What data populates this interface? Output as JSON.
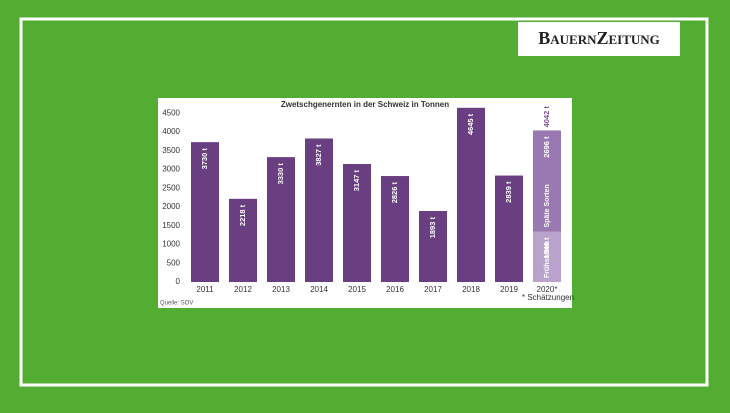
{
  "brand": "BauernZeitung",
  "chart_data": {
    "type": "bar",
    "title": "Zwetschgenernten in der Schweiz in Tonnen",
    "categories": [
      "2011",
      "2012",
      "2013",
      "2014",
      "2015",
      "2016",
      "2017",
      "2018",
      "2019",
      "2020*"
    ],
    "series": [
      {
        "color": "#6a3f82",
        "values": [
          3730,
          2218,
          3330,
          3827,
          3147,
          2826,
          1893,
          4645,
          2839,
          null
        ],
        "value_labels": [
          "3730 t",
          "2218 t",
          "3330 t",
          "3827 t",
          "3147 t",
          "2826 t",
          "1893 t",
          "4645 t",
          "2839 t",
          null
        ]
      },
      {
        "name": "Frühsorten",
        "color": "#b9a2cb",
        "values": [
          null,
          null,
          null,
          null,
          null,
          null,
          null,
          null,
          null,
          1346
        ],
        "value_labels": [
          null,
          null,
          null,
          null,
          null,
          null,
          null,
          null,
          null,
          "1346 t"
        ]
      },
      {
        "name": "Späte Sorten",
        "color": "#9a78b2",
        "values": [
          null,
          null,
          null,
          null,
          null,
          null,
          null,
          null,
          null,
          2696
        ],
        "value_labels": [
          null,
          null,
          null,
          null,
          null,
          null,
          null,
          null,
          null,
          "2696 t"
        ]
      }
    ],
    "total_label": {
      "value": 4042,
      "label": "4042 t"
    },
    "ylim": [
      0,
      4800
    ],
    "yticks": [
      0,
      500,
      1000,
      1500,
      2000,
      2500,
      3000,
      3500,
      4000,
      4500
    ],
    "grid": false,
    "source": "Quelle: SOV",
    "footnote": "* Schätzungen"
  }
}
